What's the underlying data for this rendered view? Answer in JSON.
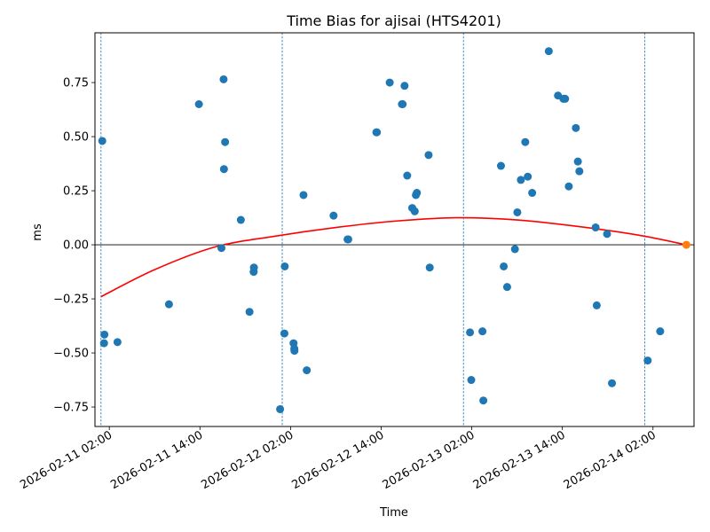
{
  "chart_data": {
    "type": "scatter",
    "title": "Time Bias for ajisai (HTS4201)",
    "xlabel": "Time",
    "ylabel": "ms",
    "x_ticks": [
      "2026-02-11 02:00",
      "2026-02-11 14:00",
      "2026-02-12 02:00",
      "2026-02-12 14:00",
      "2026-02-13 02:00",
      "2026-02-13 14:00",
      "2026-02-14 02:00"
    ],
    "y_ticks": [
      "−0.75",
      "−0.50",
      "−0.25",
      "0.00",
      "0.25",
      "0.50",
      "0.75"
    ],
    "ylim": [
      -0.84,
      0.98
    ],
    "xlim": [
      "2026-02-11 00:06",
      "2026-02-14 07:26"
    ],
    "hline_y": 0.0,
    "vlines": [
      "2026-02-11 00:54",
      "2026-02-12 00:54",
      "2026-02-13 00:54",
      "2026-02-14 00:54"
    ],
    "colors": {
      "points": "#1f77b4",
      "fit": "#ff0000",
      "last_point": "#ff7f0e",
      "vlines": "#1f77b4",
      "hline": "#000000"
    },
    "series": [
      {
        "points": [
          [
            "2026-02-11 01:04",
            0.48
          ],
          [
            "2026-02-11 01:21",
            -0.415
          ],
          [
            "2026-02-11 01:18",
            -0.455
          ],
          [
            "2026-02-11 03:05",
            -0.45
          ],
          [
            "2026-02-11 09:54",
            -0.275
          ],
          [
            "2026-02-11 13:52",
            0.65
          ],
          [
            "2026-02-11 16:51",
            -0.015
          ],
          [
            "2026-02-11 17:08",
            0.765
          ],
          [
            "2026-02-11 17:11",
            0.35
          ],
          [
            "2026-02-11 17:20",
            0.475
          ],
          [
            "2026-02-11 19:25",
            0.115
          ],
          [
            "2026-02-11 20:34",
            -0.31
          ],
          [
            "2026-02-11 21:09",
            -0.105
          ],
          [
            "2026-02-11 21:07",
            -0.125
          ],
          [
            "2026-02-12 00:37",
            -0.76
          ],
          [
            "2026-02-12 01:14",
            -0.1
          ],
          [
            "2026-02-12 01:11",
            -0.41
          ],
          [
            "2026-02-12 02:24",
            -0.455
          ],
          [
            "2026-02-12 02:30",
            -0.48
          ],
          [
            "2026-02-12 02:31",
            -0.49
          ],
          [
            "2026-02-12 03:43",
            0.23
          ],
          [
            "2026-02-12 04:09",
            -0.58
          ],
          [
            "2026-02-12 07:42",
            0.135
          ],
          [
            "2026-02-12 09:33",
            0.025
          ],
          [
            "2026-02-12 09:39",
            0.025
          ],
          [
            "2026-02-12 13:26",
            0.52
          ],
          [
            "2026-02-12 13:22",
            0.52
          ],
          [
            "2026-02-12 15:08",
            0.75
          ],
          [
            "2026-02-12 16:45",
            0.65
          ],
          [
            "2026-02-12 16:51",
            0.65
          ],
          [
            "2026-02-12 17:06",
            0.735
          ],
          [
            "2026-02-12 17:27",
            0.32
          ],
          [
            "2026-02-12 18:07",
            0.17
          ],
          [
            "2026-02-12 18:27",
            0.155
          ],
          [
            "2026-02-12 18:36",
            0.23
          ],
          [
            "2026-02-12 18:44",
            0.24
          ],
          [
            "2026-02-12 20:17",
            0.415
          ],
          [
            "2026-02-12 20:26",
            -0.105
          ],
          [
            "2026-02-13 01:46",
            -0.405
          ],
          [
            "2026-02-13 01:56",
            -0.625
          ],
          [
            "2026-02-13 03:25",
            -0.4
          ],
          [
            "2026-02-13 03:32",
            -0.72
          ],
          [
            "2026-02-13 05:52",
            0.365
          ],
          [
            "2026-02-13 06:14",
            -0.1
          ],
          [
            "2026-02-13 06:41",
            -0.195
          ],
          [
            "2026-02-13 07:43",
            -0.02
          ],
          [
            "2026-02-13 08:02",
            0.15
          ],
          [
            "2026-02-13 08:30",
            0.3
          ],
          [
            "2026-02-13 09:05",
            0.475
          ],
          [
            "2026-02-13 09:25",
            0.315
          ],
          [
            "2026-02-13 10:00",
            0.24
          ],
          [
            "2026-02-13 12:12",
            0.895
          ],
          [
            "2026-02-13 13:25",
            0.69
          ],
          [
            "2026-02-13 14:08",
            0.675
          ],
          [
            "2026-02-13 14:22",
            0.675
          ],
          [
            "2026-02-13 14:51",
            0.27
          ],
          [
            "2026-02-13 15:47",
            0.54
          ],
          [
            "2026-02-13 16:03",
            0.385
          ],
          [
            "2026-02-13 16:15",
            0.34
          ],
          [
            "2026-02-13 18:24",
            0.08
          ],
          [
            "2026-02-13 18:33",
            -0.28
          ],
          [
            "2026-02-13 19:55",
            0.05
          ],
          [
            "2026-02-13 20:34",
            -0.64
          ],
          [
            "2026-02-14 01:18",
            -0.535
          ],
          [
            "2026-02-14 02:57",
            -0.4
          ]
        ]
      },
      {
        "type": "line",
        "points": [
          [
            "2026-02-11 00:54",
            -0.24
          ],
          [
            "2026-02-11 08:00",
            -0.115
          ],
          [
            "2026-02-11 16:00",
            -0.01
          ],
          [
            "2026-02-12 00:00",
            0.04
          ],
          [
            "2026-02-12 08:00",
            0.08
          ],
          [
            "2026-02-12 16:00",
            0.11
          ],
          [
            "2026-02-13 00:00",
            0.125
          ],
          [
            "2026-02-13 08:00",
            0.115
          ],
          [
            "2026-02-13 16:00",
            0.085
          ],
          [
            "2026-02-14 00:00",
            0.045
          ],
          [
            "2026-02-14 06:25",
            0.0
          ]
        ]
      },
      {
        "points": [
          [
            "2026-02-14 06:25",
            0.0
          ]
        ]
      }
    ]
  }
}
